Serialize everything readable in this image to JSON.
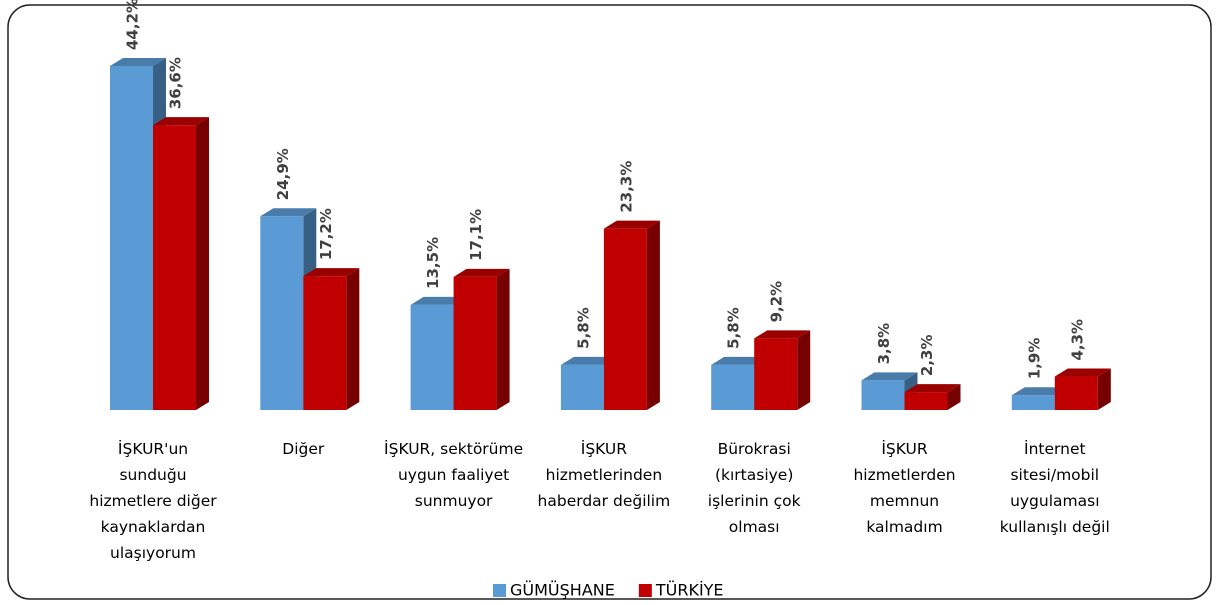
{
  "chart_data": {
    "type": "bar3d",
    "categories": [
      "İŞKUR'un sunduğu hizmetlere diğer kaynaklardan ulaşıyorum",
      "Diğer",
      "İŞKUR, sektörüme uygun faaliyet sunmuyor",
      "İŞKUR hizmetlerinden haberdar değilim",
      "Bürokrasi (kırtasiye) işlerinin çok olması",
      "İŞKUR hizmetlerden memnun kalmadım",
      "İnternet sitesi/mobil uygulaması kullanışlı değil"
    ],
    "series": [
      {
        "name": "GÜMÜŞHANE",
        "color": "#5b9bd5",
        "values": [
          44.2,
          24.9,
          13.5,
          5.8,
          5.8,
          3.8,
          1.9
        ],
        "value_labels": [
          "44,2%",
          "24,9%",
          "13,5%",
          "5,8%",
          "5,8%",
          "3,8%",
          "1,9%"
        ]
      },
      {
        "name": "TÜRKİYE",
        "color": "#c00000",
        "values": [
          36.6,
          17.2,
          17.1,
          23.3,
          9.2,
          2.3,
          4.3
        ],
        "value_labels": [
          "36,6%",
          "17,2%",
          "17,1%",
          "23,3%",
          "9,2%",
          "2,3%",
          "4,3%"
        ]
      }
    ]
  }
}
